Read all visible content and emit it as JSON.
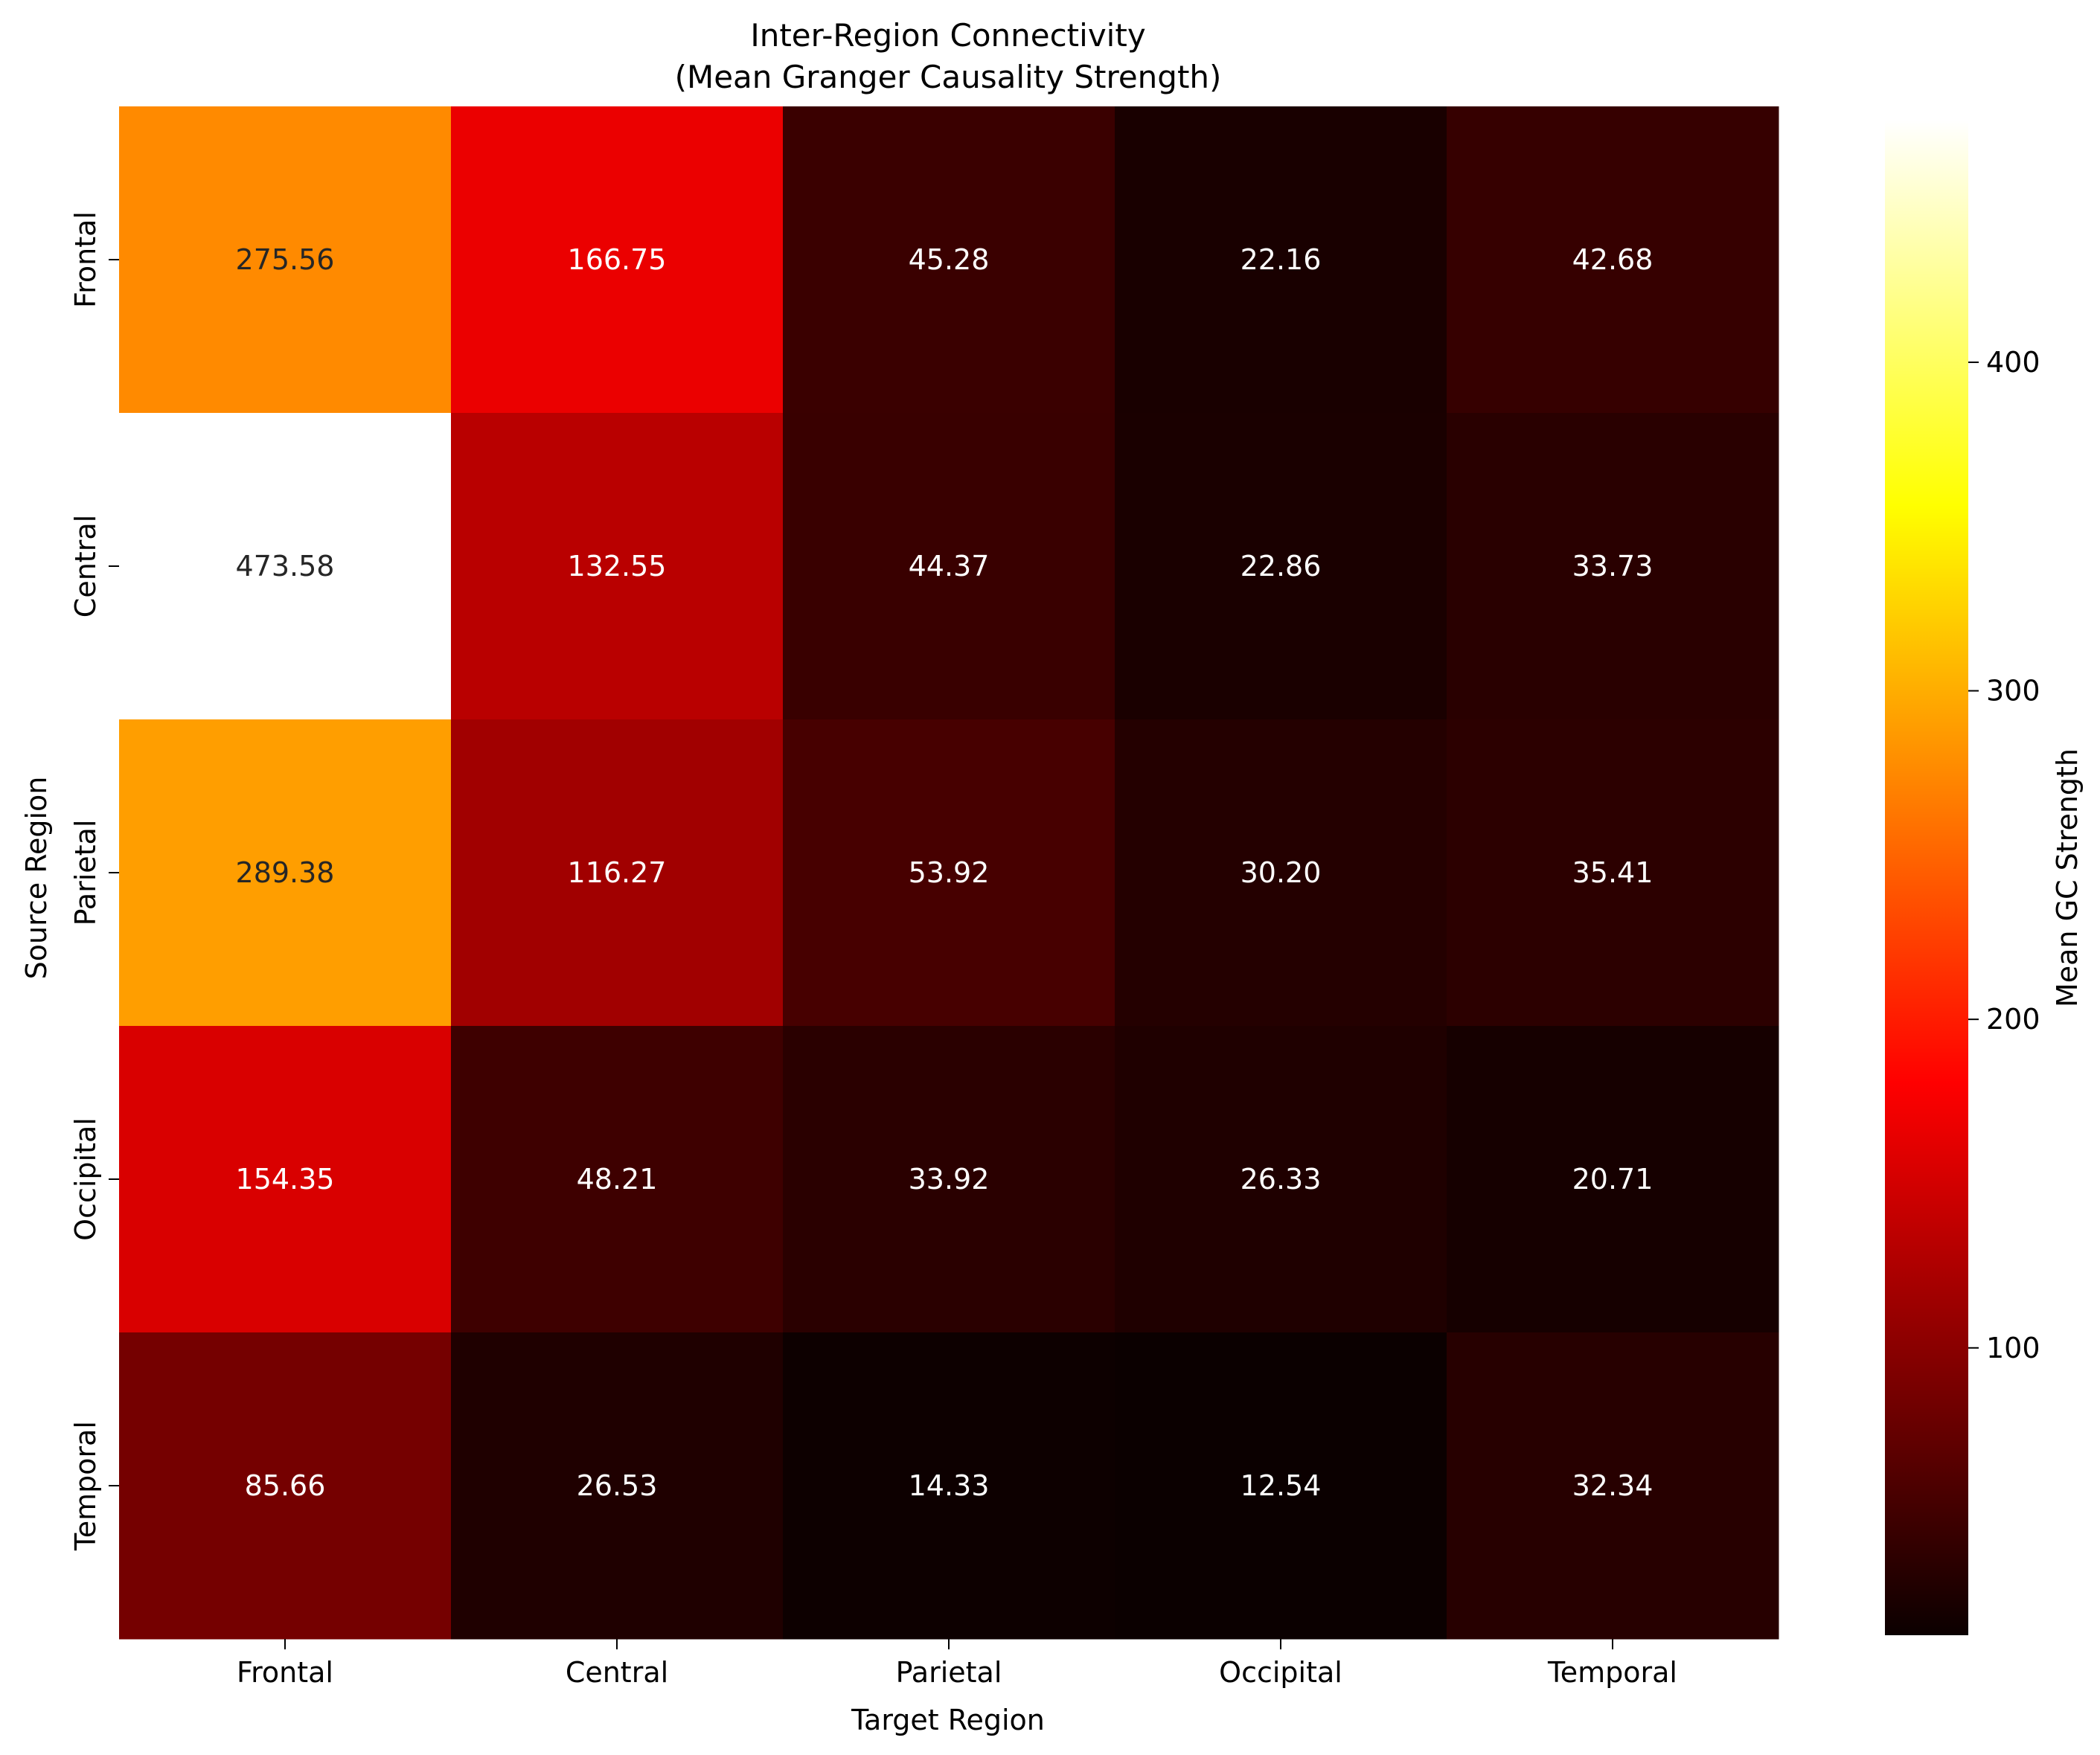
{
  "chart_data": {
    "type": "heatmap",
    "title_lines": [
      "Inter-Region Connectivity",
      "(Mean Granger Causality Strength)"
    ],
    "xlabel": "Target Region",
    "ylabel": "Source Region",
    "x_categories": [
      "Frontal",
      "Central",
      "Parietal",
      "Occipital",
      "Temporal"
    ],
    "y_categories": [
      "Frontal",
      "Central",
      "Parietal",
      "Occipital",
      "Temporal"
    ],
    "values": [
      [
        275.56,
        166.75,
        45.28,
        22.16,
        42.68
      ],
      [
        473.58,
        132.55,
        44.37,
        22.86,
        33.73
      ],
      [
        289.38,
        116.27,
        53.92,
        30.2,
        35.41
      ],
      [
        154.35,
        48.21,
        33.92,
        26.33,
        20.71
      ],
      [
        85.66,
        26.53,
        14.33,
        12.54,
        32.34
      ]
    ],
    "value_format_decimals": 2,
    "colormap": "hot",
    "colorbar": {
      "label": "Mean GC Strength",
      "vmin": 12.54,
      "vmax": 473.58,
      "ticks": [
        100,
        200,
        300,
        400
      ]
    },
    "grid": false
  }
}
